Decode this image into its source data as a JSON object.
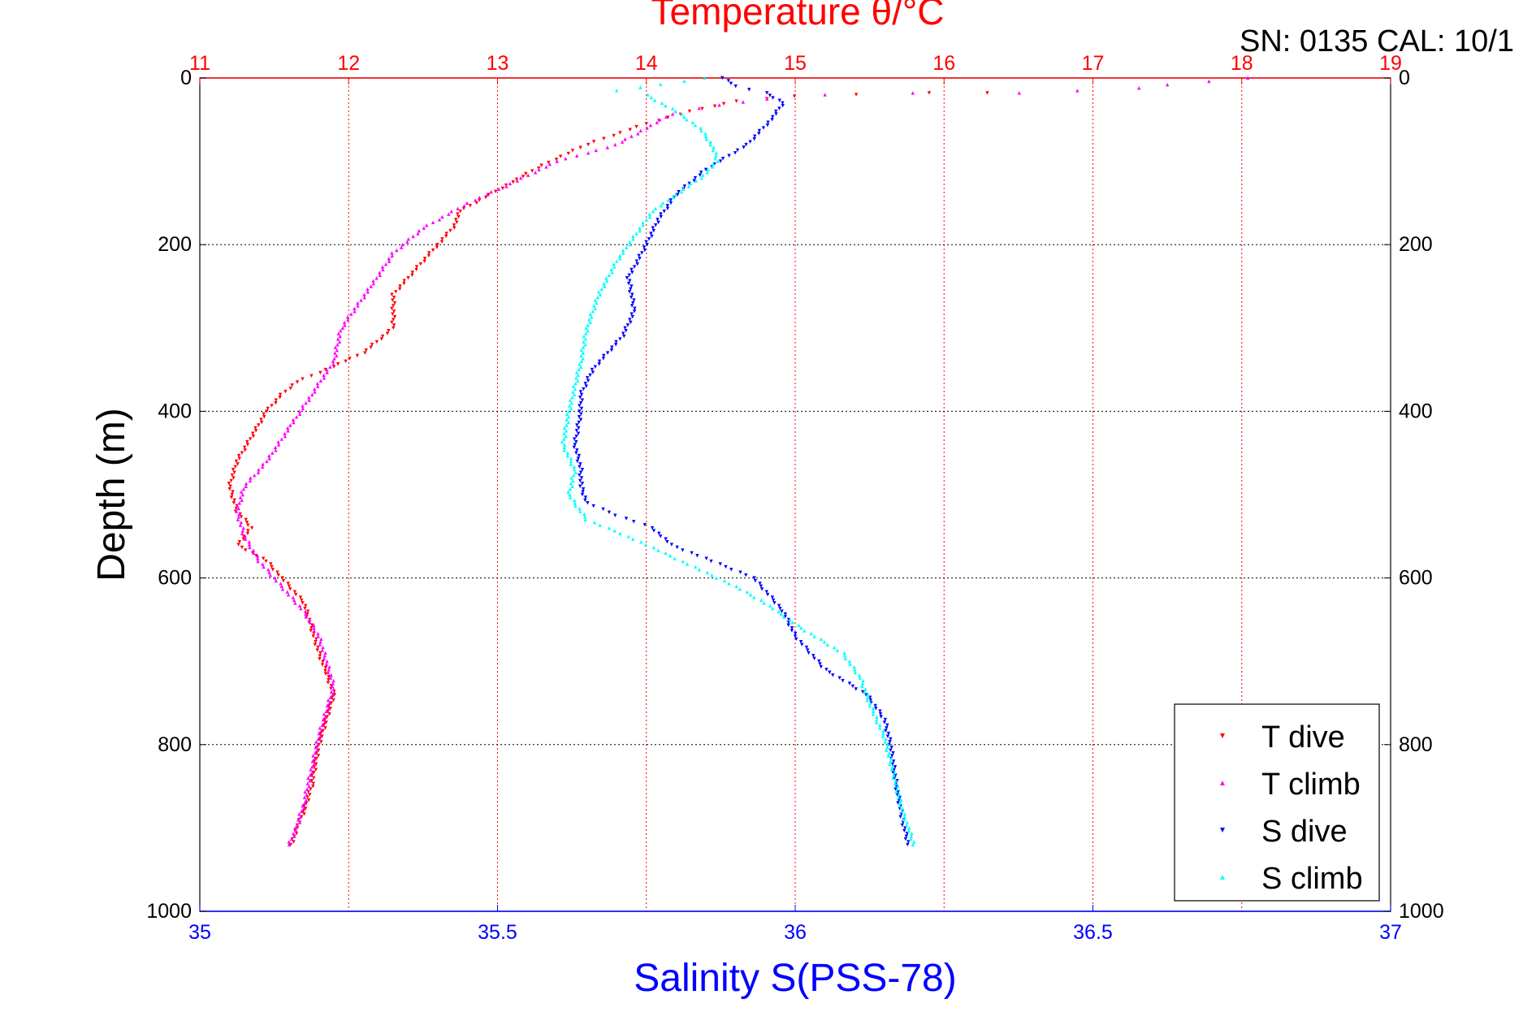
{
  "chart_data": {
    "type": "scatter",
    "title": "Temperature θ/°C",
    "annotation": "SN: 0135  CAL: 10/1",
    "xlabel": "Salinity S(PSS-78)",
    "ylabel": "Depth (m)",
    "x_bottom": {
      "label": "Salinity S(PSS-78)",
      "range": [
        35,
        37
      ],
      "ticks": [
        "35",
        "35.5",
        "36",
        "36.5",
        "37"
      ],
      "color": "#0000ff"
    },
    "x_top": {
      "label": "Temperature θ/°C",
      "range": [
        11,
        19
      ],
      "ticks": [
        "11",
        "12",
        "13",
        "14",
        "15",
        "16",
        "17",
        "18",
        "19"
      ],
      "color": "#ff0000"
    },
    "y": {
      "label": "Depth (m)",
      "range": [
        0,
        1000
      ],
      "reversed": true,
      "ticks": [
        "0",
        "200",
        "400",
        "600",
        "800",
        "1000"
      ]
    },
    "grid": true,
    "legend_position": "bottom-right",
    "legend": [
      "T dive",
      "T climb",
      "S dive",
      "S climb"
    ],
    "series": [
      {
        "name": "T dive",
        "axis": "temperature",
        "marker": "triangle-down",
        "color": "#ff0000",
        "points": [
          [
            16.3,
            18
          ],
          [
            15.9,
            18
          ],
          [
            15.4,
            20
          ],
          [
            15.0,
            22
          ],
          [
            14.6,
            28
          ],
          [
            14.3,
            40
          ],
          [
            14.0,
            55
          ],
          [
            13.6,
            80
          ],
          [
            13.3,
            105
          ],
          [
            13.1,
            125
          ],
          [
            12.95,
            140
          ],
          [
            12.75,
            160
          ],
          [
            12.7,
            180
          ],
          [
            12.6,
            200
          ],
          [
            12.45,
            230
          ],
          [
            12.3,
            260
          ],
          [
            12.3,
            300
          ],
          [
            12.1,
            330
          ],
          [
            11.85,
            350
          ],
          [
            11.65,
            365
          ],
          [
            11.55,
            380
          ],
          [
            11.45,
            400
          ],
          [
            11.35,
            430
          ],
          [
            11.25,
            460
          ],
          [
            11.2,
            490
          ],
          [
            11.25,
            520
          ],
          [
            11.35,
            540
          ],
          [
            11.25,
            560
          ],
          [
            11.45,
            580
          ],
          [
            11.55,
            600
          ],
          [
            11.7,
            630
          ],
          [
            11.75,
            660
          ],
          [
            11.8,
            690
          ],
          [
            11.85,
            715
          ],
          [
            11.9,
            740
          ],
          [
            11.85,
            770
          ],
          [
            11.8,
            800
          ],
          [
            11.75,
            850
          ],
          [
            11.7,
            880
          ],
          [
            11.65,
            900
          ],
          [
            11.62,
            920
          ]
        ]
      },
      {
        "name": "T climb",
        "axis": "temperature",
        "marker": "triangle-up",
        "color": "#ff00ff",
        "points": [
          [
            18.05,
            0
          ],
          [
            17.5,
            8
          ],
          [
            17.3,
            12
          ],
          [
            16.9,
            15
          ],
          [
            16.5,
            18
          ],
          [
            15.8,
            18
          ],
          [
            15.2,
            20
          ],
          [
            14.8,
            25
          ],
          [
            14.2,
            40
          ],
          [
            14.0,
            60
          ],
          [
            13.8,
            80
          ],
          [
            13.4,
            100
          ],
          [
            13.05,
            130
          ],
          [
            12.8,
            150
          ],
          [
            12.5,
            180
          ],
          [
            12.3,
            210
          ],
          [
            12.15,
            250
          ],
          [
            11.95,
            300
          ],
          [
            11.9,
            340
          ],
          [
            11.75,
            380
          ],
          [
            11.6,
            420
          ],
          [
            11.45,
            460
          ],
          [
            11.3,
            490
          ],
          [
            11.25,
            520
          ],
          [
            11.3,
            550
          ],
          [
            11.4,
            580
          ],
          [
            11.55,
            610
          ],
          [
            11.7,
            640
          ],
          [
            11.8,
            670
          ],
          [
            11.85,
            700
          ],
          [
            11.9,
            730
          ],
          [
            11.85,
            760
          ],
          [
            11.8,
            790
          ],
          [
            11.75,
            830
          ],
          [
            11.7,
            870
          ],
          [
            11.65,
            900
          ],
          [
            11.6,
            920
          ]
        ]
      },
      {
        "name": "S dive",
        "axis": "salinity",
        "marker": "triangle-down",
        "color": "#0000ff",
        "points": [
          [
            35.88,
            0
          ],
          [
            35.9,
            10
          ],
          [
            35.95,
            18
          ],
          [
            35.98,
            30
          ],
          [
            35.96,
            50
          ],
          [
            35.92,
            80
          ],
          [
            35.85,
            110
          ],
          [
            35.8,
            140
          ],
          [
            35.77,
            170
          ],
          [
            35.75,
            200
          ],
          [
            35.72,
            240
          ],
          [
            35.73,
            280
          ],
          [
            35.71,
            310
          ],
          [
            35.66,
            350
          ],
          [
            35.64,
            380
          ],
          [
            35.64,
            400
          ],
          [
            35.63,
            440
          ],
          [
            35.64,
            470
          ],
          [
            35.64,
            490
          ],
          [
            35.65,
            510
          ],
          [
            35.7,
            525
          ],
          [
            35.76,
            540
          ],
          [
            35.79,
            560
          ],
          [
            35.86,
            580
          ],
          [
            35.93,
            600
          ],
          [
            35.98,
            640
          ],
          [
            36.0,
            670
          ],
          [
            36.05,
            710
          ],
          [
            36.12,
            740
          ],
          [
            36.15,
            770
          ],
          [
            36.16,
            800
          ],
          [
            36.17,
            850
          ],
          [
            36.18,
            890
          ],
          [
            36.19,
            920
          ]
        ]
      },
      {
        "name": "S climb",
        "axis": "salinity",
        "marker": "triangle-up",
        "color": "#00ffff",
        "points": [
          [
            35.85,
            0
          ],
          [
            35.7,
            15
          ],
          [
            35.75,
            20
          ],
          [
            35.8,
            40
          ],
          [
            35.84,
            60
          ],
          [
            35.86,
            80
          ],
          [
            35.87,
            100
          ],
          [
            35.84,
            120
          ],
          [
            35.8,
            140
          ],
          [
            35.76,
            160
          ],
          [
            35.73,
            190
          ],
          [
            35.7,
            220
          ],
          [
            35.67,
            260
          ],
          [
            35.65,
            300
          ],
          [
            35.64,
            340
          ],
          [
            35.63,
            370
          ],
          [
            35.62,
            400
          ],
          [
            35.61,
            440
          ],
          [
            35.63,
            470
          ],
          [
            35.62,
            500
          ],
          [
            35.65,
            530
          ],
          [
            35.72,
            550
          ],
          [
            35.78,
            570
          ],
          [
            35.84,
            590
          ],
          [
            35.9,
            610
          ],
          [
            35.95,
            630
          ],
          [
            36.01,
            660
          ],
          [
            36.08,
            690
          ],
          [
            36.11,
            720
          ],
          [
            36.13,
            760
          ],
          [
            36.15,
            790
          ],
          [
            36.16,
            820
          ],
          [
            36.17,
            850
          ],
          [
            36.18,
            880
          ],
          [
            36.19,
            900
          ],
          [
            36.2,
            920
          ]
        ]
      }
    ],
    "colors": {
      "temperature_axis": "#ff0000",
      "salinity_axis": "#0000ff",
      "grid": "#000000",
      "background": "#ffffff"
    }
  }
}
